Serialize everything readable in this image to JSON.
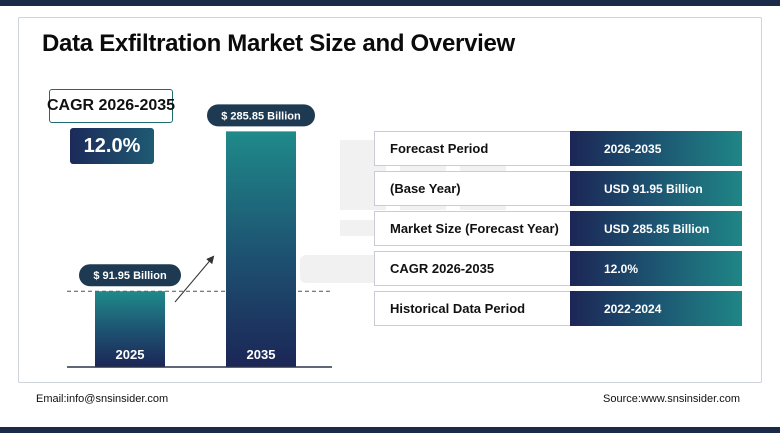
{
  "title": "Data Exfiltration Market Size and Overview",
  "cagr": {
    "label": "CAGR 2026-2035",
    "value": "12.0%"
  },
  "chart_data": {
    "type": "bar",
    "categories": [
      "2025",
      "2035"
    ],
    "values": [
      91.95,
      285.85
    ],
    "value_labels": [
      "$ 91.95 Billion",
      "$ 285.85 Billion"
    ],
    "xlabel": "",
    "ylabel": "",
    "ylim": [
      0,
      313
    ],
    "grid": false,
    "reference_line": 91.95
  },
  "table": [
    {
      "label": "Forecast Period",
      "value": "2026-2035"
    },
    {
      "label": "(Base Year)",
      "value": "USD 91.95 Billion"
    },
    {
      "label": "Market Size (Forecast Year)",
      "value": "USD 285.85 Billion"
    },
    {
      "label": "CAGR 2026-2035",
      "value": "12.0%"
    },
    {
      "label": "Historical Data Period",
      "value": "2022-2024"
    }
  ],
  "footer": {
    "email": "Email:info@snsinsider.com",
    "source": "Source:www.snsinsider.com"
  },
  "colors": {
    "navy": "#1c2a4a",
    "bar_top": "#1f8a8a",
    "bar_bottom": "#1c2656",
    "pill": "#1e3a52"
  }
}
